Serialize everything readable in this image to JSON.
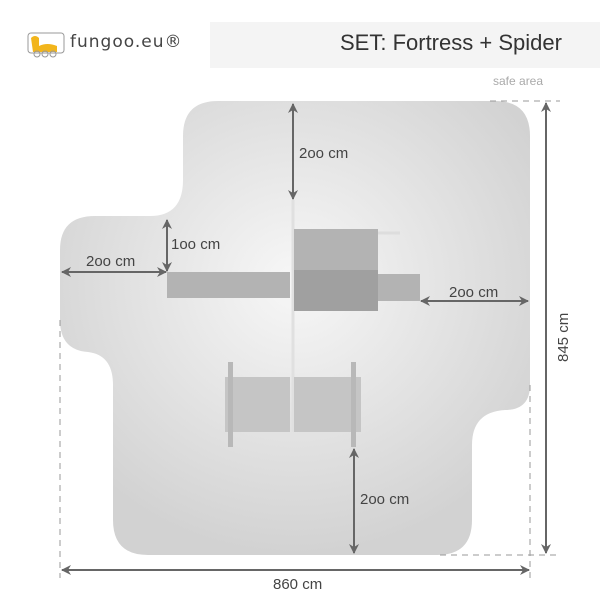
{
  "header": {
    "brand": "fungoo.eu®",
    "title": "SET: Fortress + Spider",
    "safe_area_label": "safe area"
  },
  "dimensions": {
    "top_clearance": "2oo cm",
    "left_platform_top": "1oo cm",
    "left_clearance": "2oo cm",
    "right_clearance": "2oo cm",
    "bottom_clearance": "2oo cm",
    "total_width": "860 cm",
    "total_depth": "845 cm"
  },
  "colors": {
    "logo_yellow": "#f2b51c",
    "safe_area": "#d6d6d6",
    "arrow": "#666666"
  }
}
